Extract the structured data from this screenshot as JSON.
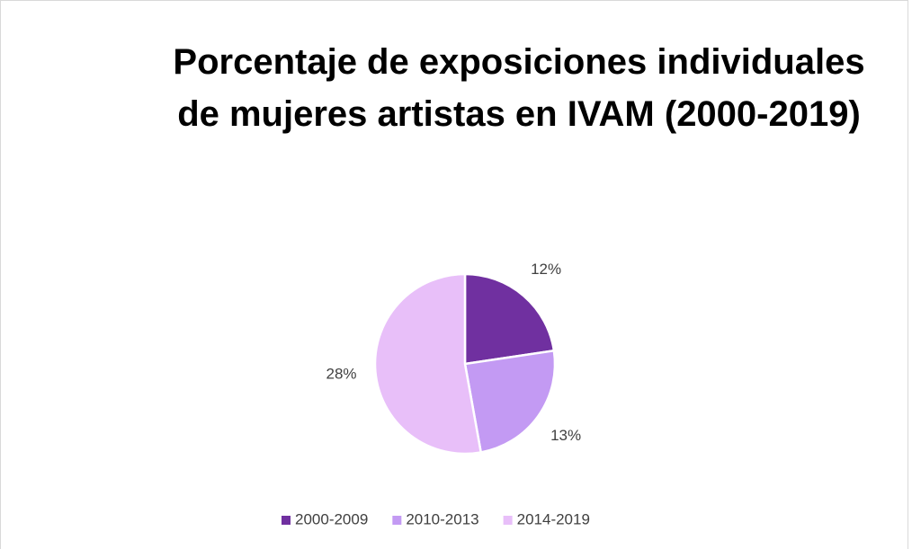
{
  "chart_data": {
    "type": "pie",
    "title": "Porcentaje de exposiciones individuales de mujeres artistas en IVAM (2000-2019)",
    "categories": [
      "2000-2009",
      "2010-2013",
      "2014-2019"
    ],
    "values": [
      12,
      13,
      28
    ],
    "value_labels": [
      "12%",
      "13%",
      "28%"
    ],
    "colors": [
      "#7030a0",
      "#c39af3",
      "#e8bff9"
    ],
    "legend": "bottom"
  }
}
